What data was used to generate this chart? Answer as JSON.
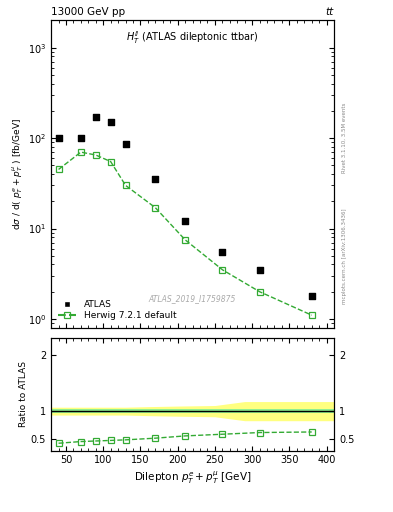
{
  "title_top": "13000 GeV pp",
  "title_top_right": "tt",
  "plot_label": "$H_T^{ll}$ (ATLAS dileptonic ttbar)",
  "watermark": "ATLAS_2019_I1759875",
  "right_label": "Rivet 3.1.10, 3.5M events",
  "right_label2": "mcplots.cern.ch [arXiv:1306.3436]",
  "xlabel": "Dilepton $p_T^e + p_T^{\\mu}$ [GeV]",
  "ylabel": "d$\\sigma$ / d( $p_T^e + p_T^{\\mu}$ ) [fb/GeV]",
  "ylabel_ratio": "Ratio to ATLAS",
  "atlas_x": [
    40,
    70,
    90,
    110,
    130,
    170,
    210,
    260,
    310,
    380
  ],
  "atlas_y": [
    100,
    100,
    170,
    150,
    85,
    35,
    12,
    5.5,
    3.5,
    1.8
  ],
  "herwig_x": [
    40,
    70,
    90,
    110,
    130,
    170,
    210,
    260,
    310,
    380
  ],
  "herwig_y": [
    45,
    70,
    65,
    55,
    30,
    17,
    7.5,
    3.5,
    2.0,
    1.1
  ],
  "ratio_herwig_x": [
    40,
    70,
    90,
    110,
    130,
    170,
    210,
    260,
    310,
    380
  ],
  "ratio_herwig_y": [
    0.43,
    0.46,
    0.47,
    0.48,
    0.49,
    0.52,
    0.56,
    0.59,
    0.62,
    0.63
  ],
  "band_x": [
    30,
    60,
    80,
    100,
    130,
    160,
    200,
    250,
    290,
    310,
    350,
    410
  ],
  "band_green_low": [
    0.97,
    0.97,
    0.97,
    0.97,
    0.97,
    0.97,
    0.97,
    0.97,
    0.97,
    0.97,
    0.97,
    0.97
  ],
  "band_green_high": [
    1.03,
    1.03,
    1.03,
    1.03,
    1.03,
    1.03,
    1.03,
    1.03,
    1.03,
    1.03,
    1.03,
    1.03
  ],
  "band_yellow_low": [
    0.93,
    0.93,
    0.93,
    0.93,
    0.93,
    0.92,
    0.91,
    0.9,
    0.83,
    0.83,
    0.83,
    0.83
  ],
  "band_yellow_high": [
    1.07,
    1.07,
    1.07,
    1.07,
    1.07,
    1.08,
    1.09,
    1.1,
    1.17,
    1.17,
    1.17,
    1.17
  ],
  "ylim_main": [
    0.8,
    2000
  ],
  "ylim_ratio": [
    0.3,
    2.3
  ],
  "xlim": [
    30,
    410
  ],
  "herwig_color": "#33aa33",
  "atlas_color": "#000000",
  "band_green_color": "#90ee90",
  "band_yellow_color": "#ffff80"
}
